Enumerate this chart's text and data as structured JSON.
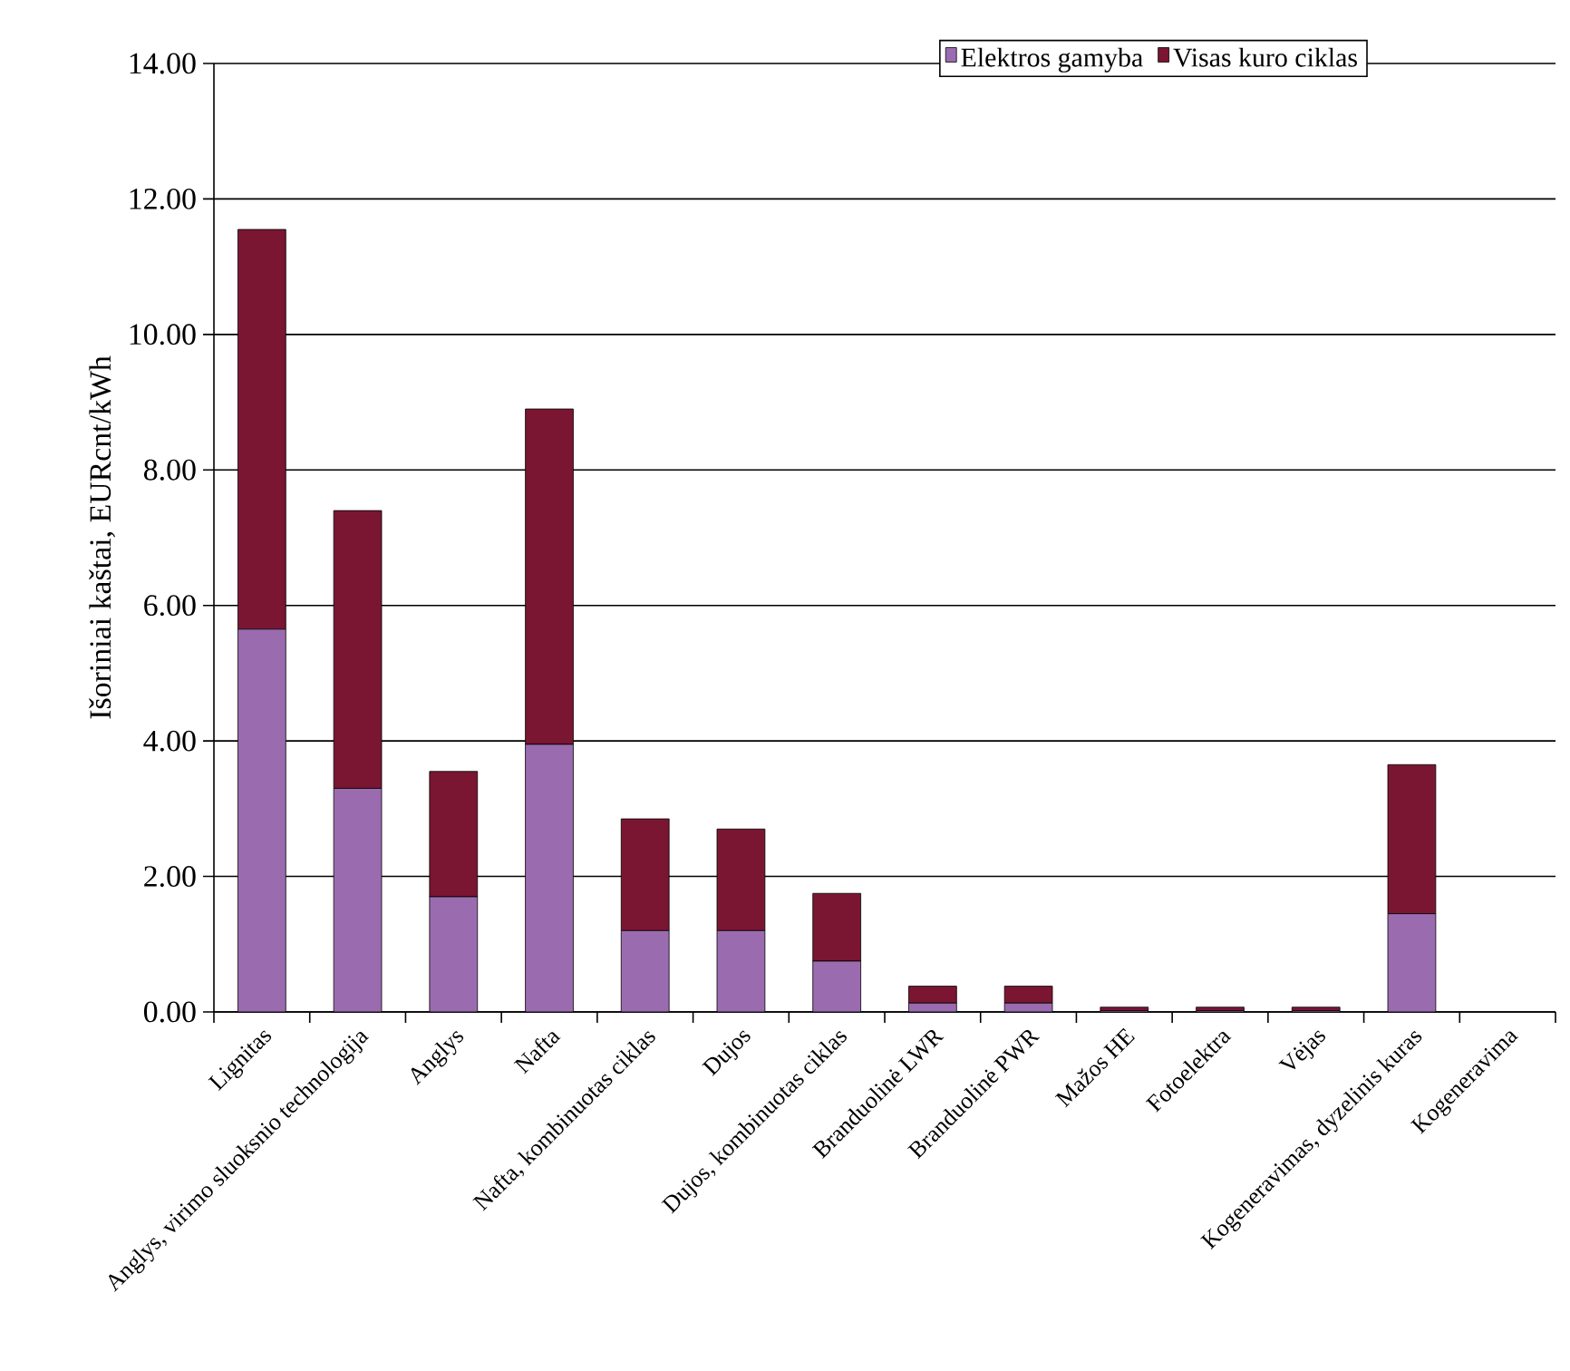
{
  "chart_data": {
    "type": "bar",
    "stacked": true,
    "ylabel": "Išoriniai kaštai, EURcnt/kWh",
    "categories": [
      "Lignitas",
      "Anglys, virimo sluoksnio technologija",
      "Anglys",
      "Nafta",
      "Nafta, kombinuotas ciklas",
      "Dujos",
      "Dujos, kombinuotas ciklas",
      "Branduolinė LWR",
      "Branduolinė PWR",
      "Mažos HE",
      "Fotoelektra",
      "Vėjas",
      "Kogeneravimas, dyzelinis kuras",
      "Kogeneravima"
    ],
    "series": [
      {
        "name": "Elektros gamyba",
        "color": "#9b6bb0",
        "values": [
          5.65,
          3.3,
          1.7,
          3.95,
          1.2,
          1.2,
          0.75,
          0.13,
          0.13,
          0.02,
          0.02,
          0.02,
          1.45,
          null
        ]
      },
      {
        "name": "Visas kuro ciklas",
        "color": "#7a1632",
        "values": [
          5.9,
          4.1,
          1.85,
          4.95,
          1.65,
          1.5,
          1.0,
          0.25,
          0.25,
          0.05,
          0.05,
          0.05,
          2.2,
          null
        ]
      }
    ],
    "ylim": [
      0,
      14
    ],
    "yticks": [
      {
        "value": 0,
        "label": "0.00"
      },
      {
        "value": 2,
        "label": "2.00"
      },
      {
        "value": 4,
        "label": "4.00"
      },
      {
        "value": 6,
        "label": "6.00"
      },
      {
        "value": 8,
        "label": "8.00"
      },
      {
        "value": 10,
        "label": "10.00"
      },
      {
        "value": 12,
        "label": "12.00"
      },
      {
        "value": 14,
        "label": "14.00"
      }
    ],
    "grid": "y",
    "legend": "top right"
  }
}
